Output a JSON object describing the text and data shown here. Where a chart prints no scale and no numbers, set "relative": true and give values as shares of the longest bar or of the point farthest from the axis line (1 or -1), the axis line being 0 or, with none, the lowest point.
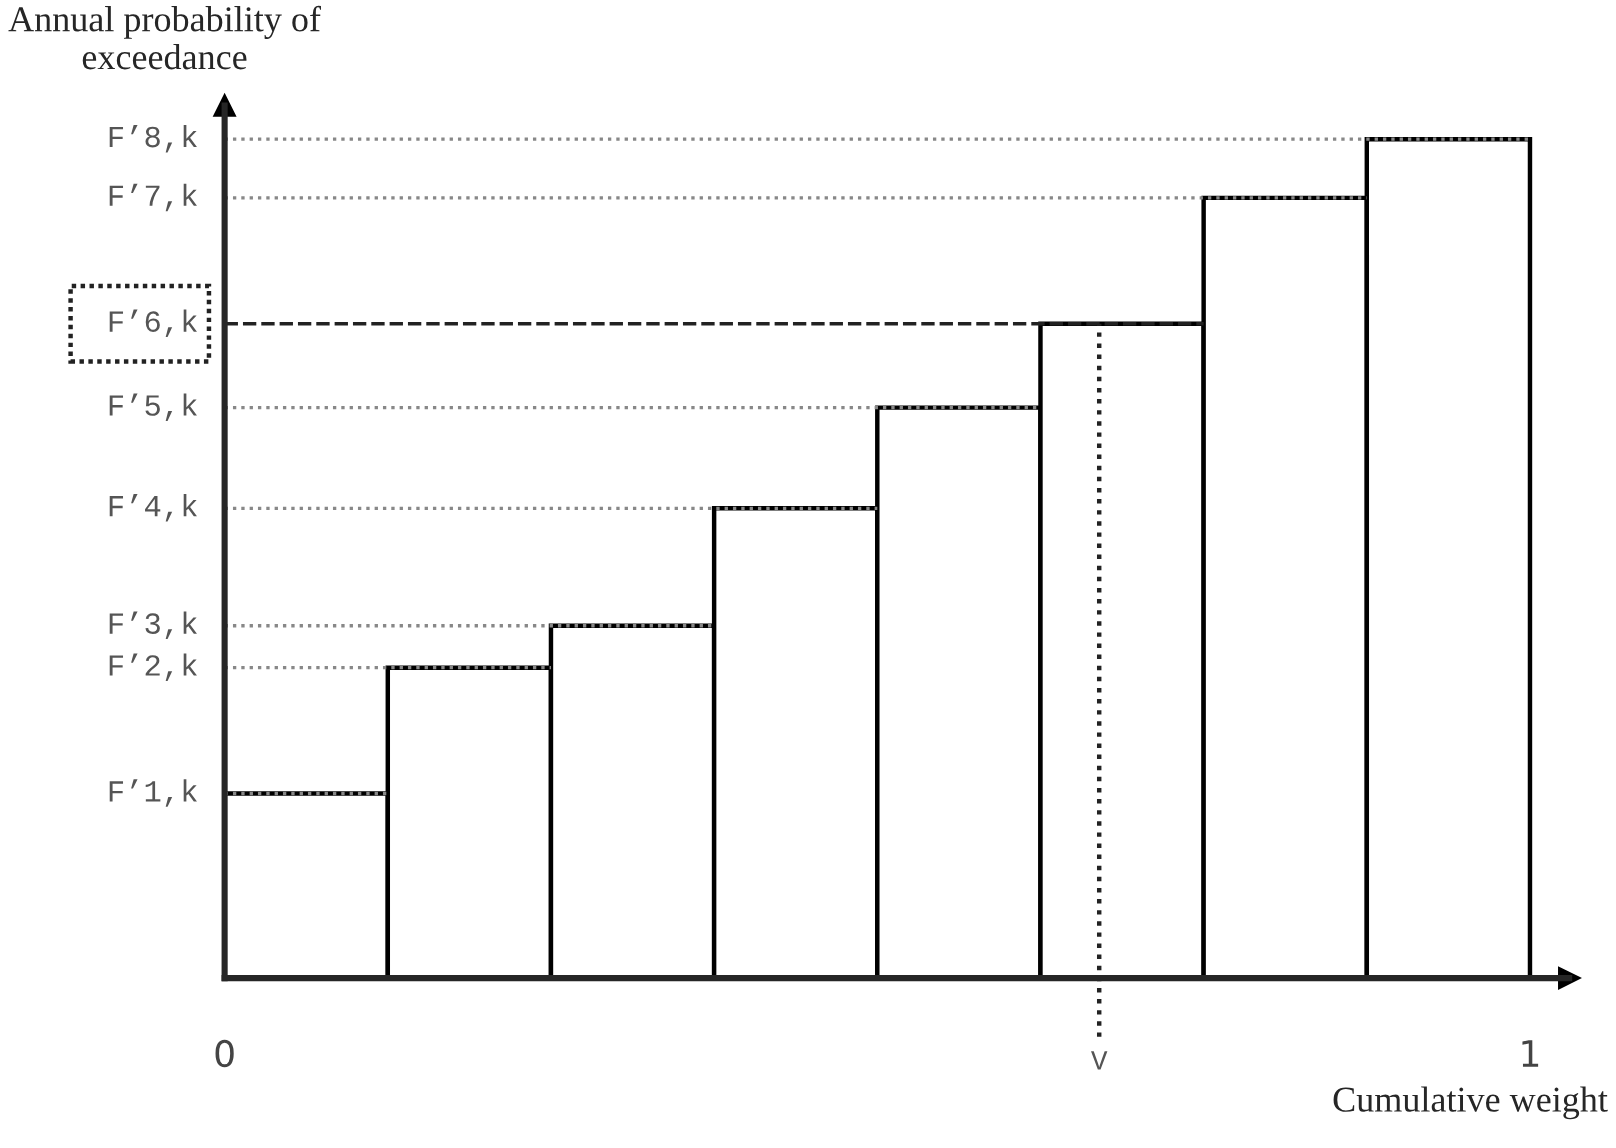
{
  "chart_data": {
    "type": "bar",
    "relative": true,
    "xlabel": "Cumulative weight",
    "ylabel": "Annual probability of\nexceedance",
    "x": [
      0.0625,
      0.1875,
      0.3125,
      0.4375,
      0.5625,
      0.6875,
      0.8125,
      0.9375
    ],
    "values": [
      0.22,
      0.37,
      0.42,
      0.56,
      0.68,
      0.78,
      0.93,
      1.0
    ],
    "color": "#ffffff",
    "xlim": [
      0,
      1.03
    ],
    "xticks": [
      0,
      1
    ],
    "grid": false,
    "ref_lines": [
      {
        "axis": "y",
        "value": 0.22,
        "label": "F’1,k",
        "color": "#888888",
        "line_style": "dotted"
      },
      {
        "axis": "y",
        "value": 0.37,
        "label": "F’2,k",
        "color": "#888888",
        "line_style": "dotted"
      },
      {
        "axis": "y",
        "value": 0.42,
        "label": "F’3,k",
        "color": "#888888",
        "line_style": "dotted"
      },
      {
        "axis": "y",
        "value": 0.56,
        "label": "F’4,k",
        "color": "#888888",
        "line_style": "dotted"
      },
      {
        "axis": "y",
        "value": 0.68,
        "label": "F’5,k",
        "color": "#888888",
        "line_style": "dotted"
      },
      {
        "axis": "y",
        "value": 0.78,
        "label": "F’6,k",
        "color": "#222222",
        "line_style": "dashed"
      },
      {
        "axis": "y",
        "value": 0.93,
        "label": "F’7,k",
        "color": "#888888",
        "line_style": "dotted"
      },
      {
        "axis": "y",
        "value": 1.0,
        "label": "F’8,k",
        "color": "#888888",
        "line_style": "dotted"
      },
      {
        "axis": "x",
        "value": 0.67,
        "label": "V",
        "color": "#222222",
        "line_style": "dotted"
      }
    ]
  }
}
